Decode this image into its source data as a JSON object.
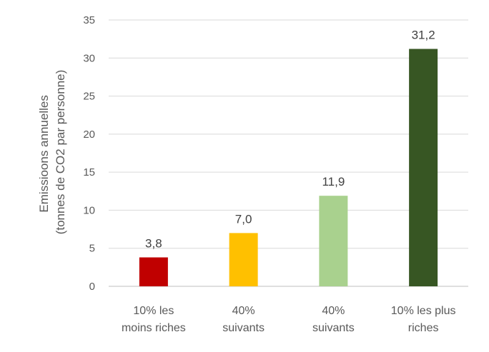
{
  "chart_data": {
    "type": "bar",
    "title": "",
    "ylabel_lines": [
      "Emissioons annuelles",
      "(tonnes de CO2 par personne)"
    ],
    "xlabel": "",
    "ylim": [
      0,
      35
    ],
    "yticks": [
      0,
      5,
      10,
      15,
      20,
      25,
      30,
      35
    ],
    "grid": true,
    "legend": "none",
    "categories": [
      [
        "10% les",
        "moins riches"
      ],
      [
        "40%",
        "suivants"
      ],
      [
        "40%",
        "suivants"
      ],
      [
        "10% les plus",
        "riches"
      ]
    ],
    "values": [
      3.8,
      7.0,
      11.9,
      31.2
    ],
    "data_labels": [
      "3,8",
      "7,0",
      "11,9",
      "31,2"
    ],
    "colors": [
      "#c00000",
      "#ffc000",
      "#a9d18e",
      "#375623"
    ]
  }
}
